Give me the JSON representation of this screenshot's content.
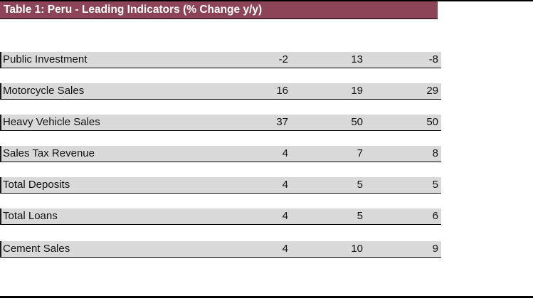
{
  "table": {
    "title": "Table 1: Peru - Leading Indicators (% Change y/y)",
    "rows": [
      {
        "label": "Public Investment",
        "values": [
          "-2",
          "13",
          "-8"
        ]
      },
      {
        "label": "Motorcycle Sales",
        "values": [
          "16",
          "19",
          "29"
        ]
      },
      {
        "label": "Heavy Vehicle Sales",
        "values": [
          "37",
          "50",
          "50"
        ]
      },
      {
        "label": "Sales Tax Revenue",
        "values": [
          "4",
          "7",
          "8"
        ]
      },
      {
        "label": "Total Deposits",
        "values": [
          "4",
          "5",
          "5"
        ]
      },
      {
        "label": "Total Loans",
        "values": [
          "4",
          "5",
          "6"
        ]
      },
      {
        "label": "Cement Sales",
        "values": [
          "4",
          "10",
          "9"
        ]
      }
    ]
  },
  "theme": {
    "header_bg": "#8D4459",
    "header_text": "#FFFFFF",
    "row_bg": "#D9D9D9",
    "rule_color": "#000000",
    "page_bg": "#FFFFFF"
  }
}
